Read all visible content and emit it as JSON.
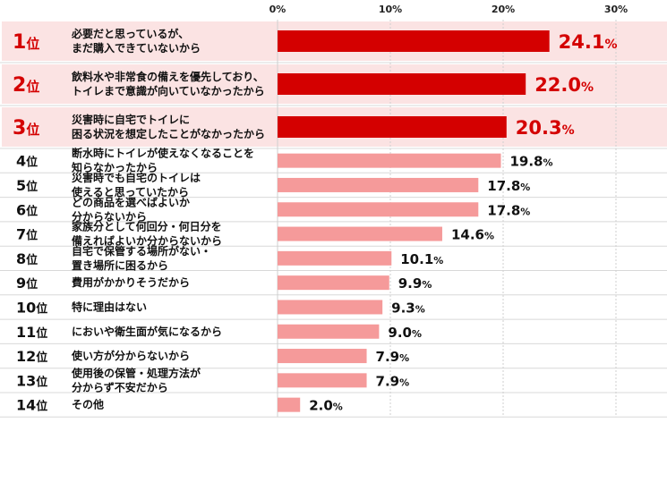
{
  "chart_data": {
    "type": "bar",
    "orientation": "horizontal",
    "xlim": [
      0,
      30
    ],
    "ticks": [
      "0%",
      "10%",
      "20%",
      "30%"
    ],
    "unit": "%",
    "rank_suffix": "位",
    "grid": true,
    "colors": {
      "highlight_bar": "#d40000",
      "highlight_text": "#d40000",
      "highlight_row_bg": "#fbe3e3",
      "normal_bar": "#f59a9a",
      "normal_text": "#111111"
    },
    "highlight_count": 3,
    "categories": [
      {
        "rank": "1",
        "label": [
          "必要だと思っているが、",
          "まだ購入できていないから"
        ],
        "value": 24.1,
        "value_text": "24.1"
      },
      {
        "rank": "2",
        "label": [
          "飲料水や非常食の備えを優先しており、",
          "トイレまで意識が向いていなかったから"
        ],
        "value": 22.0,
        "value_text": "22.0"
      },
      {
        "rank": "3",
        "label": [
          "災害時に自宅でトイレに",
          "困る状況を想定したことがなかったから"
        ],
        "value": 20.3,
        "value_text": "20.3"
      },
      {
        "rank": "4",
        "label": [
          "断水時にトイレが使えなくなることを",
          "知らなかったから"
        ],
        "value": 19.8,
        "value_text": "19.8"
      },
      {
        "rank": "5",
        "label": [
          "災害時でも自宅のトイレは",
          "使えると思っていたから"
        ],
        "value": 17.8,
        "value_text": "17.8"
      },
      {
        "rank": "6",
        "label": [
          "どの商品を選べばよいか",
          "分からないから"
        ],
        "value": 17.8,
        "value_text": "17.8"
      },
      {
        "rank": "7",
        "label": [
          "家族分として何回分・何日分を",
          "備えればよいか分からないから"
        ],
        "value": 14.6,
        "value_text": "14.6"
      },
      {
        "rank": "8",
        "label": [
          "自宅で保管する場所がない・",
          "置き場所に困るから"
        ],
        "value": 10.1,
        "value_text": "10.1"
      },
      {
        "rank": "9",
        "label": [
          "費用がかかりそうだから"
        ],
        "value": 9.9,
        "value_text": "9.9"
      },
      {
        "rank": "10",
        "label": [
          "特に理由はない"
        ],
        "value": 9.3,
        "value_text": "9.3"
      },
      {
        "rank": "11",
        "label": [
          "においや衛生面が気になるから"
        ],
        "value": 9.0,
        "value_text": "9.0"
      },
      {
        "rank": "12",
        "label": [
          "使い方が分からないから"
        ],
        "value": 7.9,
        "value_text": "7.9"
      },
      {
        "rank": "13",
        "label": [
          "使用後の保管・処理方法が",
          "分からず不安だから"
        ],
        "value": 7.9,
        "value_text": "7.9"
      },
      {
        "rank": "14",
        "label": [
          "その他"
        ],
        "value": 2.0,
        "value_text": "2.0"
      }
    ]
  }
}
